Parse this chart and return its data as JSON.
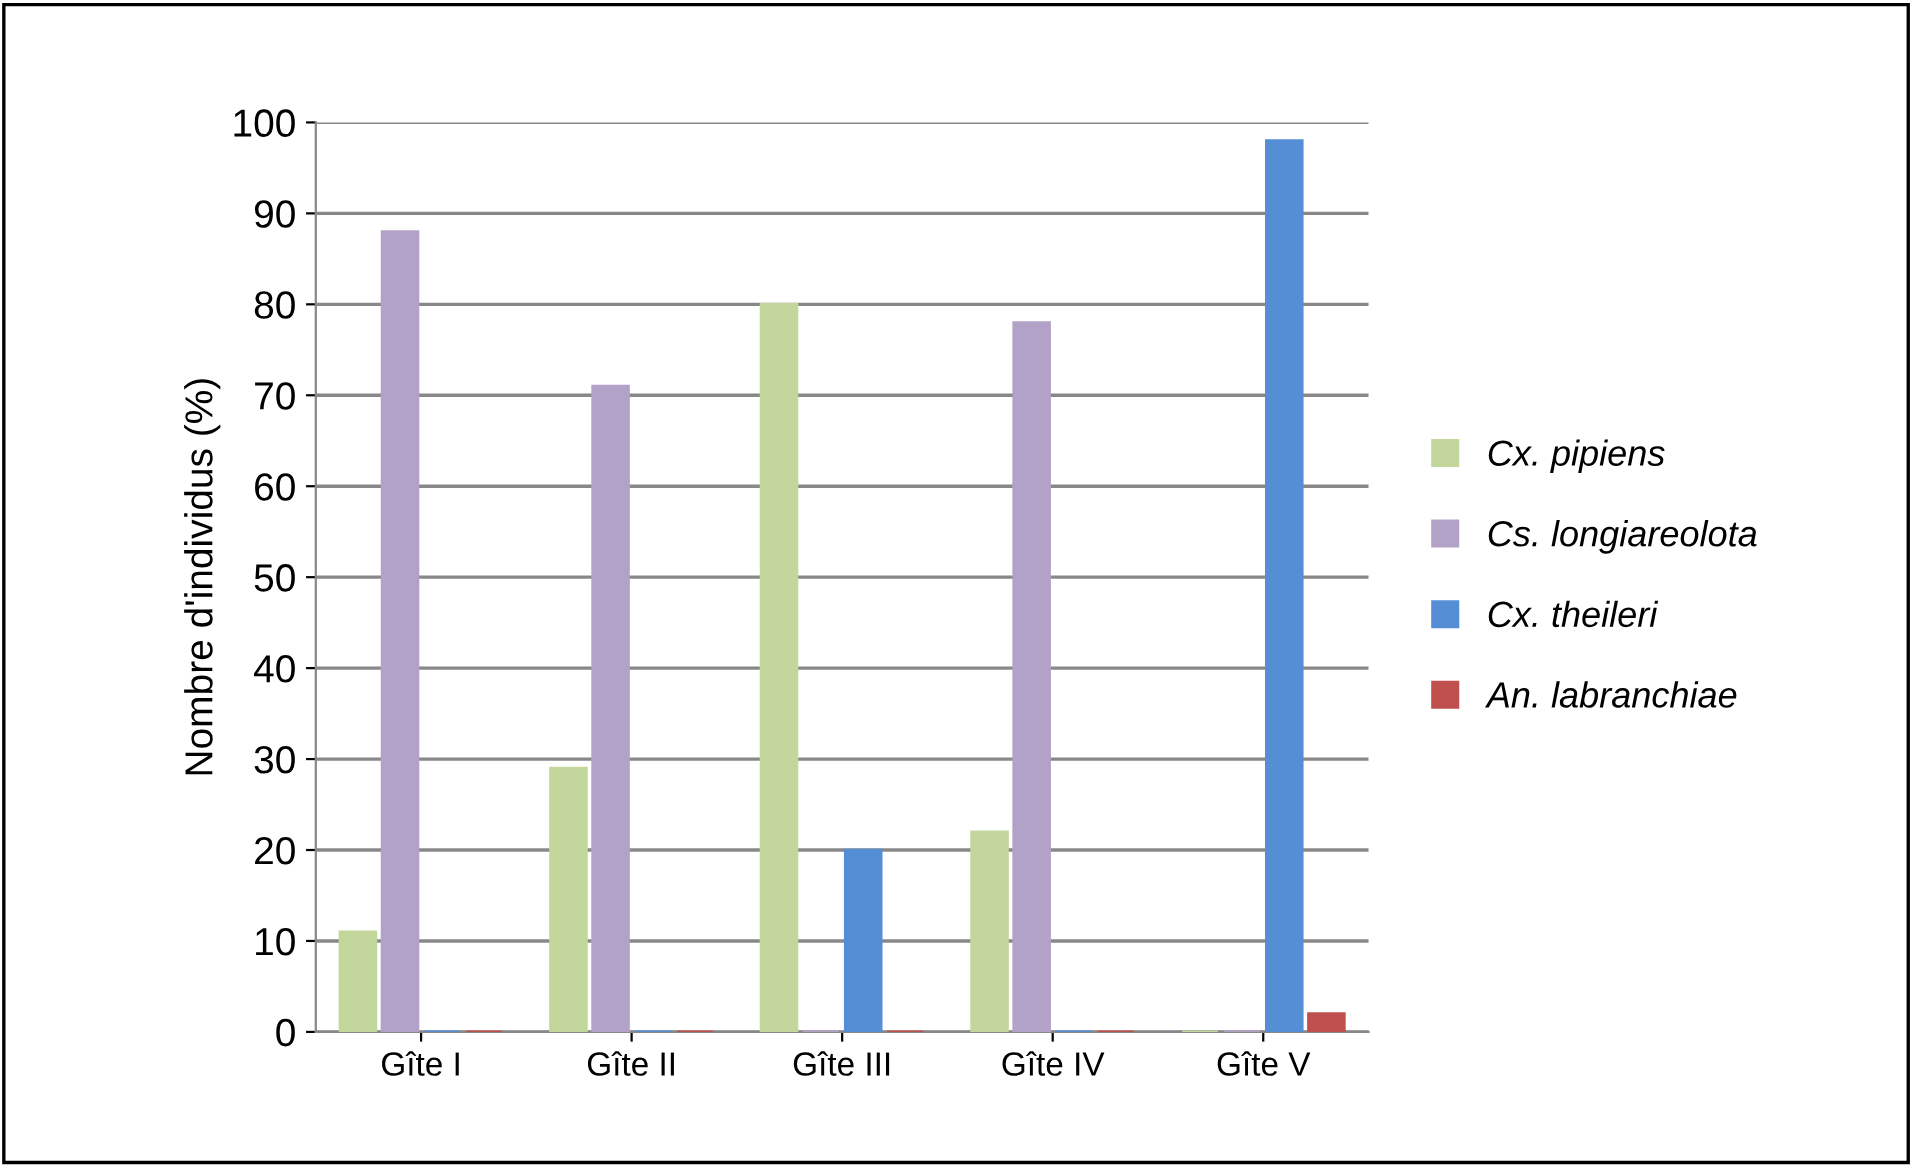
{
  "chart_data": {
    "type": "bar",
    "ylabel": "Nombre d'individus (%)",
    "categories": [
      "Gîte I",
      "Gîte II",
      "Gîte III",
      "Gîte IV",
      "Gîte V"
    ],
    "series": [
      {
        "name": "Cx. pipiens",
        "color": "#c3d69b",
        "values": [
          11,
          29,
          80,
          22,
          0
        ]
      },
      {
        "name": "Cs. longiareolota",
        "color": "#b3a2c7",
        "values": [
          88,
          71,
          0,
          78,
          0
        ]
      },
      {
        "name": "Cx. theileri",
        "color": "#558ed5",
        "values": [
          0,
          0,
          20,
          0,
          98
        ]
      },
      {
        "name": "An. labranchiae",
        "color": "#c0504d",
        "values": [
          0,
          0,
          0,
          0,
          2
        ]
      }
    ],
    "ylim": [
      0,
      100
    ],
    "yticks": [
      0,
      10,
      20,
      30,
      40,
      50,
      60,
      70,
      80,
      90,
      100
    ],
    "grid": "y",
    "legend": "right"
  }
}
